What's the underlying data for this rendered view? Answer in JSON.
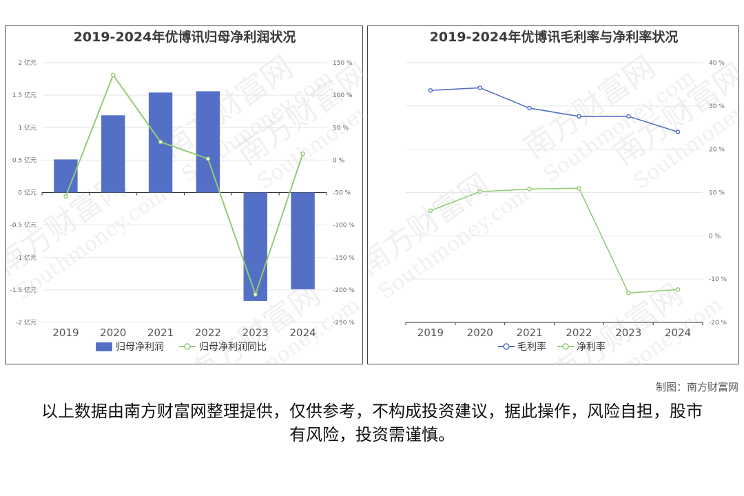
{
  "colors": {
    "bar": "#5470c6",
    "line_green": "#91cc75",
    "line_blue": "#5470c6"
  },
  "credit": "制图：南方财富网",
  "disclaimer": "以上数据由南方财富网整理提供，仅供参考，不构成投资建议，据此操作，风险自担，股市有风险，投资需谨慎。",
  "watermark": {
    "cn": "南方财富网",
    "en": "Southmoney.com"
  },
  "chart_data": [
    {
      "type": "bar",
      "title": "2019-2024年优博讯归母净利润状况",
      "categories": [
        "2019",
        "2020",
        "2021",
        "2022",
        "2023",
        "2024"
      ],
      "y_left": {
        "ticks": [
          "2 亿元",
          "1.5 亿元",
          "1 亿元",
          "0.5 亿元",
          "0 亿元",
          "-0.5 亿元",
          "-1 亿元",
          "-1.5 亿元",
          "-2 亿元"
        ],
        "ylim": [
          -2,
          2
        ]
      },
      "y_right": {
        "ticks": [
          "150 %",
          "100 %",
          "50 %",
          "0 %",
          "-50 %",
          "-100 %",
          "-150 %",
          "-200 %",
          "-250 %"
        ],
        "ylim": [
          -250,
          150
        ]
      },
      "series": [
        {
          "name": "归母净利润",
          "type": "bar",
          "axis": "left",
          "values": [
            0.51,
            1.19,
            1.54,
            1.56,
            -1.67,
            -1.49
          ]
        },
        {
          "name": "归母净利润同比",
          "type": "line",
          "axis": "right",
          "values": [
            -56,
            131,
            28,
            2,
            -207,
            10
          ]
        }
      ]
    },
    {
      "type": "line",
      "title": "2019-2024年优博讯毛利率与净利率状况",
      "categories": [
        "2019",
        "2020",
        "2021",
        "2022",
        "2023",
        "2024"
      ],
      "y_right": {
        "ticks": [
          "40 %",
          "30 %",
          "20 %",
          "10 %",
          "0 %",
          "-10 %",
          "-20 %"
        ],
        "ylim": [
          -20,
          40
        ]
      },
      "series": [
        {
          "name": "毛利率",
          "values": [
            33.6,
            34.2,
            29.5,
            27.6,
            27.6,
            24.0
          ]
        },
        {
          "name": "净利率",
          "values": [
            5.8,
            10.2,
            10.8,
            11.0,
            -13.2,
            -12.4
          ]
        }
      ]
    }
  ]
}
